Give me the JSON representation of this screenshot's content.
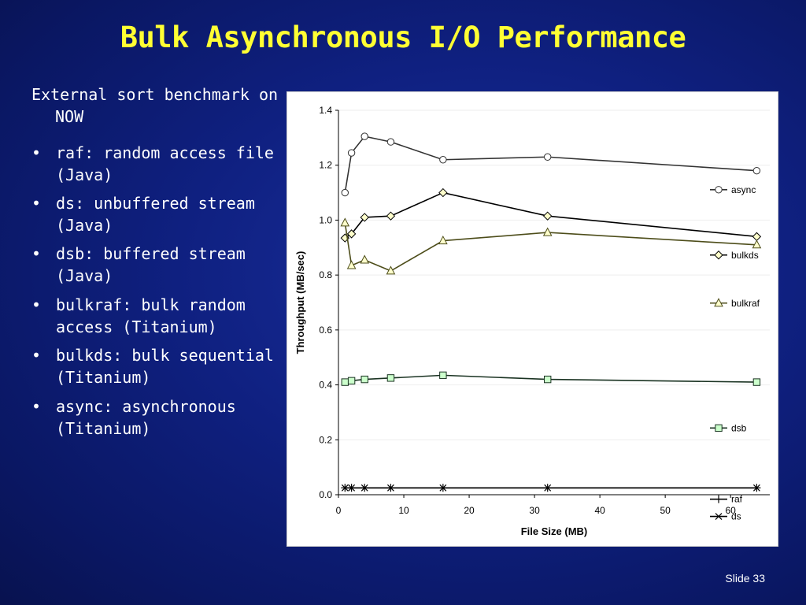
{
  "slide": {
    "title": "Bulk Asynchronous I/O Performance",
    "intro": "External sort benchmark on NOW",
    "bullets": [
      "raf: random access file (Java)",
      "ds: unbuffered stream (Java)",
      "dsb: buffered stream (Java)",
      "bulkraf: bulk random access (Titanium)",
      "bulkds: bulk sequential (Titanium)",
      "async: asynchronous (Titanium)"
    ],
    "bullet_symbol": "•",
    "slide_number": "Slide 33"
  },
  "colors": {
    "background": "#0f2080",
    "title": "#ffff33",
    "text": "#ffffff",
    "async": "#333333",
    "bulkds": "#000000",
    "bulkraf": "#4d4d1a",
    "dsb": "#1a3322",
    "raf": "#000000",
    "ds": "#000000",
    "marker_fill_async": "#ffffff",
    "marker_fill_bulkds": "#ffffcc",
    "marker_fill_bulkraf": "#ffffcc",
    "marker_fill_dsb": "#ccffcc"
  },
  "chart_data": {
    "type": "line",
    "xlabel": "File Size (MB)",
    "ylabel": "Throughput (MB/sec)",
    "xlim": [
      0,
      66
    ],
    "ylim": [
      0.0,
      1.4
    ],
    "xticks": [
      0,
      10,
      20,
      30,
      40,
      50,
      60
    ],
    "yticks": [
      0.0,
      0.2,
      0.4,
      0.6,
      0.8,
      1.0,
      1.2,
      1.4
    ],
    "ytick_labels": [
      "0.0",
      "0.2",
      "0.4",
      "0.6",
      "0.8",
      "1.0",
      "1.2",
      "1.4"
    ],
    "grid": "horizontal",
    "legend": "right",
    "series": [
      {
        "name": "async",
        "marker": "circle",
        "x": [
          1,
          2,
          4,
          8,
          16,
          32,
          64
        ],
        "values": [
          1.1,
          1.245,
          1.305,
          1.285,
          1.22,
          1.23,
          1.18
        ]
      },
      {
        "name": "bulkds",
        "marker": "diamond",
        "x": [
          1,
          2,
          4,
          8,
          16,
          32,
          64
        ],
        "values": [
          0.935,
          0.95,
          1.01,
          1.015,
          1.1,
          1.015,
          0.94
        ]
      },
      {
        "name": "bulkraf",
        "marker": "triangle",
        "x": [
          1,
          2,
          4,
          8,
          16,
          32,
          64
        ],
        "values": [
          0.99,
          0.835,
          0.855,
          0.815,
          0.925,
          0.955,
          0.91
        ]
      },
      {
        "name": "dsb",
        "marker": "square",
        "x": [
          1,
          2,
          4,
          8,
          16,
          32,
          64
        ],
        "values": [
          0.41,
          0.415,
          0.42,
          0.425,
          0.435,
          0.42,
          0.41
        ]
      },
      {
        "name": "raf",
        "marker": "plus",
        "x": [
          1,
          2,
          4,
          8,
          16,
          32,
          64
        ],
        "values": [
          0.025,
          0.025,
          0.025,
          0.025,
          0.025,
          0.025,
          0.025
        ]
      },
      {
        "name": "ds",
        "marker": "x",
        "x": [
          1,
          2,
          4,
          8,
          16,
          32,
          64
        ],
        "values": [
          0.025,
          0.025,
          0.025,
          0.025,
          0.025,
          0.025,
          0.025
        ]
      }
    ]
  }
}
